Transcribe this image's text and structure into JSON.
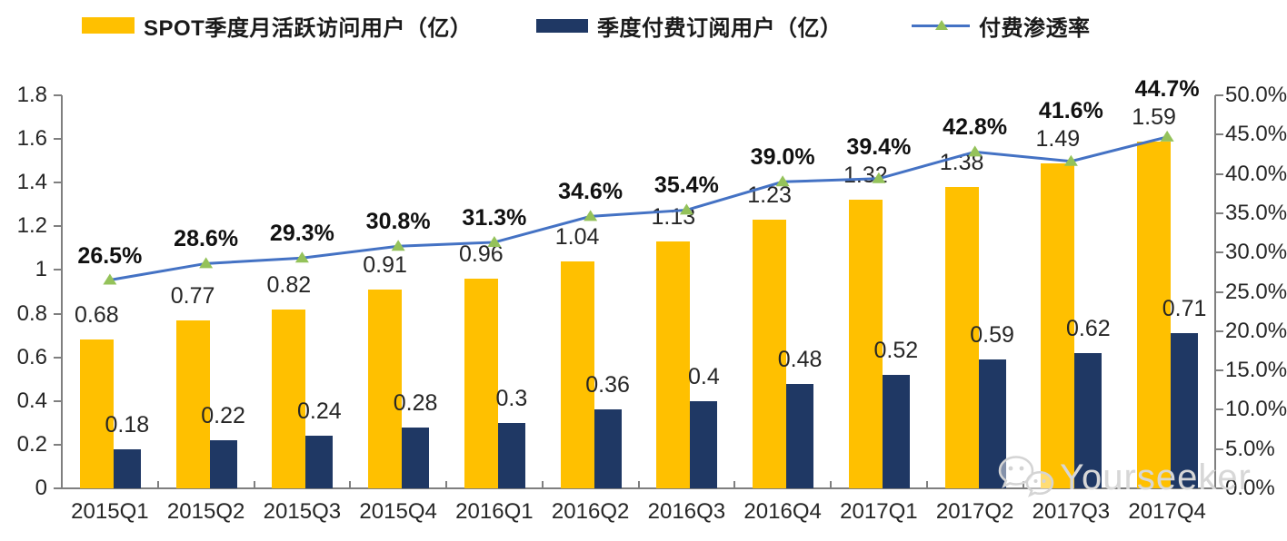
{
  "legend": [
    {
      "label": "SPOT季度月活跃访问用户（亿）",
      "color": "#FFC000",
      "type": "bar"
    },
    {
      "label": "季度付费订阅用户（亿）",
      "color": "#1F3864",
      "type": "bar"
    },
    {
      "label": "付费渗透率",
      "color": "#4472C4",
      "marker_color": "#94C25A",
      "type": "line"
    }
  ],
  "chart_data": {
    "type": "bar",
    "subtype": "combo-bar-line",
    "categories": [
      "2015Q1",
      "2015Q2",
      "2015Q3",
      "2015Q4",
      "2016Q1",
      "2016Q2",
      "2016Q3",
      "2016Q4",
      "2017Q1",
      "2017Q2",
      "2017Q3",
      "2017Q4"
    ],
    "series": [
      {
        "name": "SPOT季度月活跃访问用户（亿）",
        "type": "bar",
        "axis": "left",
        "color": "#FFC000",
        "values": [
          0.68,
          0.77,
          0.82,
          0.91,
          0.96,
          1.04,
          1.13,
          1.23,
          1.32,
          1.38,
          1.49,
          1.59
        ],
        "labels": [
          "0.68",
          "0.77",
          "0.82",
          "0.91",
          "0.96",
          "1.04",
          "1.13",
          "1.23",
          "1.32",
          "1.38",
          "1.49",
          "1.59"
        ]
      },
      {
        "name": "季度付费订阅用户（亿）",
        "type": "bar",
        "axis": "left",
        "color": "#1F3864",
        "values": [
          0.18,
          0.22,
          0.24,
          0.28,
          0.3,
          0.36,
          0.4,
          0.48,
          0.52,
          0.59,
          0.62,
          0.71
        ],
        "labels": [
          "0.18",
          "0.22",
          "0.24",
          "0.28",
          "0.3",
          "0.36",
          "0.4",
          "0.48",
          "0.52",
          "0.59",
          "0.62",
          "0.71"
        ]
      },
      {
        "name": "付费渗透率",
        "type": "line",
        "axis": "right",
        "color": "#4472C4",
        "marker": "triangle",
        "marker_color": "#94C25A",
        "values": [
          26.5,
          28.6,
          29.3,
          30.8,
          31.3,
          34.6,
          35.4,
          39.0,
          39.4,
          42.8,
          41.6,
          44.7
        ],
        "labels": [
          "26.5%",
          "28.6%",
          "29.3%",
          "30.8%",
          "31.3%",
          "34.6%",
          "35.4%",
          "39.0%",
          "39.4%",
          "42.8%",
          "41.6%",
          "44.7%"
        ]
      }
    ],
    "left_axis": {
      "min": 0,
      "max": 1.8,
      "step": 0.2,
      "ticks": [
        "0",
        "0.2",
        "0.4",
        "0.6",
        "0.8",
        "1",
        "1.2",
        "1.4",
        "1.6",
        "1.8"
      ]
    },
    "right_axis": {
      "min": 0,
      "max": 50,
      "step": 5,
      "ticks": [
        "0.0%",
        "5.0%",
        "10.0%",
        "15.0%",
        "20.0%",
        "25.0%",
        "30.0%",
        "35.0%",
        "40.0%",
        "45.0%",
        "50.0%"
      ]
    },
    "grid": false,
    "legend_position": "top"
  },
  "watermark": {
    "text": "Yourseeker",
    "icon": "wechat-icon"
  }
}
